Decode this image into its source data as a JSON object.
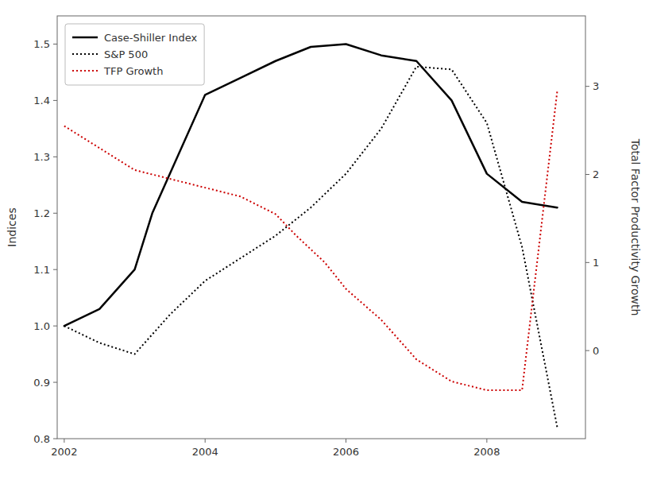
{
  "chart_data": {
    "type": "line",
    "ylabel": "Indices",
    "y2label": "Total Factor Productivity Growth",
    "xlim": [
      2001.9,
      2009.4
    ],
    "xticks": [
      2002,
      2004,
      2006,
      2008
    ],
    "ylim": [
      0.8,
      1.55
    ],
    "yticks": [
      0.8,
      0.9,
      {
        "value": 1.0,
        "label": "1.0"
      },
      1.1,
      1.2,
      1.3,
      1.4,
      1.5
    ],
    "y2lim": [
      -1.0,
      3.8
    ],
    "y2ticks": [
      0,
      1,
      2,
      3
    ],
    "grid": false,
    "legend": "upper left",
    "series": [
      {
        "name": "Case-Shiller Index",
        "color": "#000000",
        "line_style": "solid",
        "axis": "y",
        "x": [
          2002,
          2002.5,
          2003,
          2003.25,
          2004,
          2004.5,
          2005,
          2005.5,
          2006,
          2006.5,
          2007,
          2007.5,
          2008,
          2008.5,
          2009
        ],
        "values": [
          1.0,
          1.03,
          1.1,
          1.2,
          1.41,
          1.44,
          1.47,
          1.495,
          1.5,
          1.48,
          1.47,
          1.4,
          1.27,
          1.22,
          1.21
        ]
      },
      {
        "name": "S&P 500",
        "color": "#000000",
        "line_style": "dotted",
        "axis": "y",
        "x": [
          2002,
          2002.5,
          2003,
          2003.5,
          2004,
          2004.5,
          2005,
          2005.5,
          2006,
          2006.5,
          2007,
          2007.5,
          2008,
          2008.5,
          2009
        ],
        "values": [
          1.0,
          0.97,
          0.95,
          1.02,
          1.08,
          1.12,
          1.16,
          1.21,
          1.27,
          1.35,
          1.46,
          1.455,
          1.36,
          1.14,
          0.82
        ]
      },
      {
        "name": "TFP Growth",
        "color": "#cc0000",
        "line_style": "dotted",
        "axis": "y2",
        "x": [
          2002,
          2002.3,
          2002.7,
          2003,
          2003.5,
          2004,
          2004.5,
          2005,
          2005.3,
          2005.7,
          2006,
          2006.5,
          2007,
          2007.5,
          2008,
          2008.5,
          2009
        ],
        "values": [
          2.55,
          2.4,
          2.2,
          2.05,
          1.95,
          1.85,
          1.75,
          1.55,
          1.3,
          1.0,
          0.7,
          0.35,
          -0.1,
          -0.35,
          -0.45,
          -0.45,
          2.95
        ]
      }
    ]
  }
}
